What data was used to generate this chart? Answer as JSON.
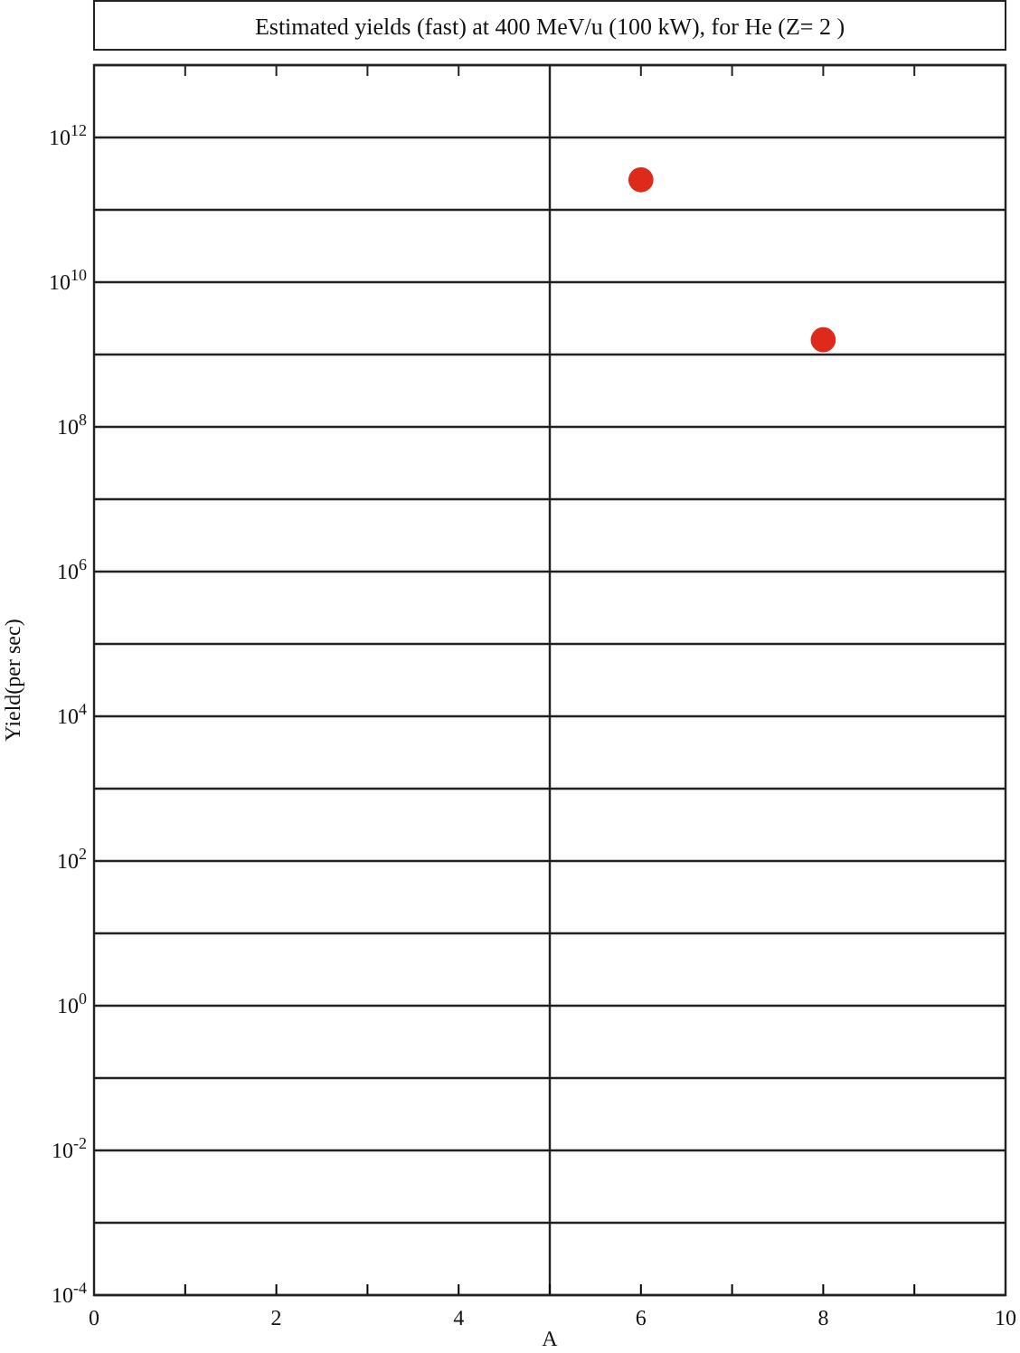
{
  "chart_data": {
    "type": "scatter",
    "title": "Estimated yields (fast) at 400 MeV/u (100 kW), for He (Z= 2 )",
    "xlabel": "A",
    "ylabel": "Yield(per sec)",
    "x": [
      6,
      8
    ],
    "series": [
      {
        "color": "#de2a1a",
        "values": [
          260000000000.0,
          1600000000.0
        ]
      }
    ],
    "log": "y",
    "marker": "circle",
    "grid": "y",
    "xlim": [
      0,
      10
    ],
    "xticks": [
      0,
      {
        "value": 1,
        "label": null
      },
      2,
      {
        "value": 3,
        "label": null
      },
      4,
      {
        "value": 5,
        "label": null
      },
      6,
      {
        "value": 7,
        "label": null
      },
      8,
      {
        "value": 9,
        "label": null
      },
      10
    ],
    "ylim": [
      0.0001,
      10000000000000.0
    ],
    "yticks": [
      {
        "value": 0.0001,
        "label": "10$^{-4}$"
      },
      {
        "value": 0.001,
        "label": null
      },
      {
        "value": 0.01,
        "label": "10$^{-2}$"
      },
      {
        "value": 0.1,
        "label": null
      },
      {
        "value": 1,
        "label": "10$^{0}$"
      },
      {
        "value": 10,
        "label": null
      },
      {
        "value": 100,
        "label": "10$^{2}$"
      },
      {
        "value": 1000.0,
        "label": null
      },
      {
        "value": 10000.0,
        "label": "10$^{4}$"
      },
      {
        "value": 100000.0,
        "label": null
      },
      {
        "value": 1000000.0,
        "label": "10$^{6}$"
      },
      {
        "value": 10000000.0,
        "label": null
      },
      {
        "value": 100000000.0,
        "label": "10$^{8}$"
      },
      {
        "value": 1000000000.0,
        "label": null
      },
      {
        "value": 10000000000.0,
        "label": "10$^{10}$"
      },
      {
        "value": 100000000000.0,
        "label": null
      },
      {
        "value": 1000000000000.0,
        "label": "10$^{12}$"
      },
      {
        "value": 10000000000000.0,
        "label": null
      }
    ],
    "ref_lines": [
      {
        "axis": "x",
        "value": 5,
        "color": "#222222"
      }
    ]
  }
}
